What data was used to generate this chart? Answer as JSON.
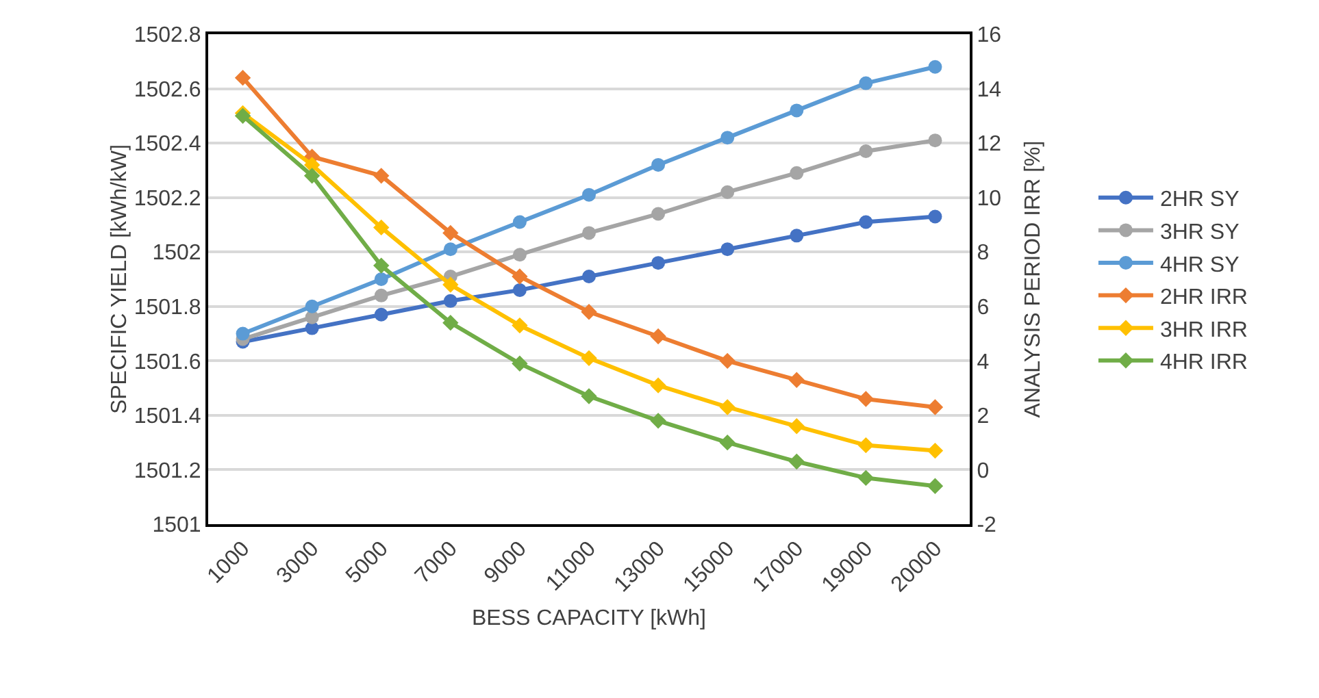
{
  "chart_data": {
    "type": "line",
    "xlabel": "BESS CAPACITY [kWh]",
    "ylabel": "SPECIFIC YIELD [kWh/kW]",
    "y2label": "ANALYSIS PERIOD IRR [%]",
    "categories": [
      "1000",
      "3000",
      "5000",
      "7000",
      "9000",
      "11000",
      "13000",
      "15000",
      "17000",
      "19000",
      "20000"
    ],
    "ylim": [
      1501,
      1502.8
    ],
    "yticks": [
      1501,
      1501.2,
      1501.4,
      1501.6,
      1501.8,
      {
        "value": 1502,
        "label": "1502"
      },
      1502.2,
      1502.4,
      1502.6,
      1502.8
    ],
    "y2lim": [
      -2,
      16
    ],
    "y2ticks": [
      -2,
      0,
      2,
      4,
      6,
      8,
      10,
      12,
      14,
      16
    ],
    "grid": "y",
    "legend": "right",
    "line_style": "solid",
    "series": [
      {
        "name": "2HR SY",
        "color": "#4472c4",
        "marker": "circle",
        "values": [
          1501.67,
          1501.72,
          1501.77,
          1501.82,
          1501.86,
          1501.91,
          1501.96,
          1502.01,
          1502.06,
          1502.11,
          1502.13
        ]
      },
      {
        "name": "3HR SY",
        "color": "#a5a5a5",
        "marker": "circle",
        "values": [
          1501.68,
          1501.76,
          1501.84,
          1501.91,
          1501.99,
          1502.07,
          1502.14,
          1502.22,
          1502.29,
          1502.37,
          1502.41
        ]
      },
      {
        "name": "4HR SY",
        "color": "#5b9bd5",
        "marker": "circle",
        "values": [
          1501.7,
          1501.8,
          1501.9,
          1502.01,
          1502.11,
          1502.21,
          1502.32,
          1502.42,
          1502.52,
          1502.62,
          1502.68
        ]
      },
      {
        "name": "2HR IRR",
        "color": "#ed7d31",
        "marker": "diamond",
        "axis": "y2",
        "values": [
          14.4,
          11.5,
          10.8,
          8.7,
          7.1,
          5.8,
          4.9,
          4.0,
          3.3,
          2.6,
          2.3
        ]
      },
      {
        "name": "3HR IRR",
        "color": "#ffc000",
        "marker": "diamond",
        "axis": "y2",
        "values": [
          13.1,
          11.2,
          8.9,
          6.8,
          5.3,
          4.1,
          3.1,
          2.3,
          1.6,
          0.9,
          0.7
        ]
      },
      {
        "name": "4HR IRR",
        "color": "#70ad47",
        "marker": "diamond",
        "axis": "y2",
        "values": [
          13.0,
          10.8,
          7.5,
          5.4,
          3.9,
          2.7,
          1.8,
          1.0,
          0.3,
          -0.3,
          -0.6
        ]
      }
    ]
  }
}
